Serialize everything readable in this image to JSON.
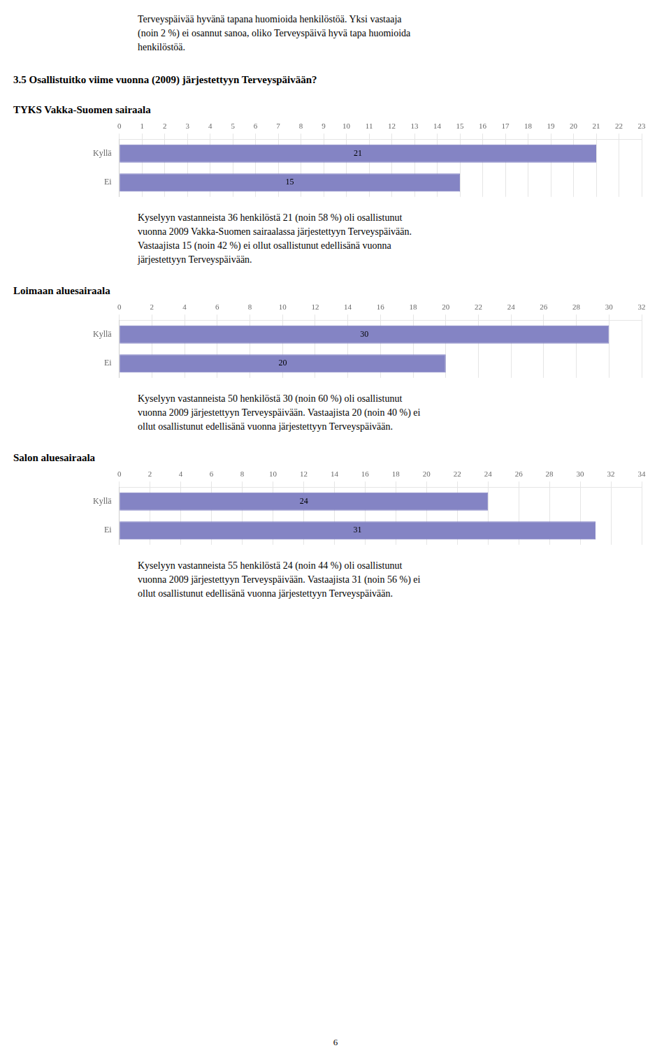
{
  "annotations": [
    "Terveyspäivää hyvänä tapana huomioida henkilöstöä. Yksi vastaaja",
    "(noin 2 %) ei osannut sanoa, oliko Terveyspäivä hyvä tapa huomioida",
    "henkilöstöä."
  ],
  "title": "3.5 Osallistuitko viime vuonna (2009) järjestettyyn Terveyspäivään?",
  "page_number": "6",
  "chart_data": [
    {
      "type": "bar",
      "orientation": "horizontal",
      "title": "TYKS Vakka-Suomen sairaala",
      "categories": [
        "Kyllä",
        "Ei"
      ],
      "values": [
        21,
        15
      ],
      "color": "#8484c4",
      "xlim": [
        0,
        23
      ],
      "xticks": [
        0,
        1,
        2,
        3,
        4,
        5,
        6,
        7,
        8,
        9,
        10,
        11,
        12,
        13,
        14,
        15,
        16,
        17,
        18,
        19,
        20,
        21,
        22,
        23
      ],
      "grid": true,
      "data_labels": true,
      "annotations": [
        "Kyselyyn vastanneista 36 henkilöstä 21 (noin 58 %) oli osallistunut",
        "vuonna 2009 Vakka-Suomen sairaalassa järjestettyyn Terveyspäivään.",
        "Vastaajista 15 (noin 42 %) ei ollut osallistunut edellisänä vuonna",
        "järjestettyyn Terveyspäivään."
      ]
    },
    {
      "type": "bar",
      "orientation": "horizontal",
      "title": "Loimaan aluesairaala",
      "categories": [
        "Kyllä",
        "Ei"
      ],
      "values": [
        30,
        20
      ],
      "color": "#8484c4",
      "xlim": [
        0,
        32
      ],
      "xticks": [
        0,
        2,
        4,
        6,
        8,
        10,
        12,
        14,
        16,
        18,
        20,
        22,
        24,
        26,
        28,
        30,
        32
      ],
      "grid": true,
      "data_labels": true,
      "annotations": [
        "Kyselyyn vastanneista 50 henkilöstä 30 (noin 60 %) oli osallistunut",
        "vuonna 2009 järjestettyyn Terveyspäivään. Vastaajista 20 (noin 40 %) ei",
        "ollut osallistunut edellisänä vuonna järjestettyyn Terveyspäivään."
      ]
    },
    {
      "type": "bar",
      "orientation": "horizontal",
      "title": "Salon aluesairaala",
      "categories": [
        "Kyllä",
        "Ei"
      ],
      "values": [
        24,
        31
      ],
      "color": "#8484c4",
      "xlim": [
        0,
        34
      ],
      "xticks": [
        0,
        2,
        4,
        6,
        8,
        10,
        12,
        14,
        16,
        18,
        20,
        22,
        24,
        26,
        28,
        30,
        32,
        34
      ],
      "grid": true,
      "data_labels": true,
      "annotations": [
        "Kyselyyn vastanneista 55 henkilöstä 24 (noin 44 %) oli osallistunut",
        "vuonna 2009 järjestettyyn Terveyspäivään. Vastaajista 31 (noin 56 %) ei",
        "ollut osallistunut edellisänä vuonna järjestettyyn Terveyspäivään."
      ]
    }
  ]
}
